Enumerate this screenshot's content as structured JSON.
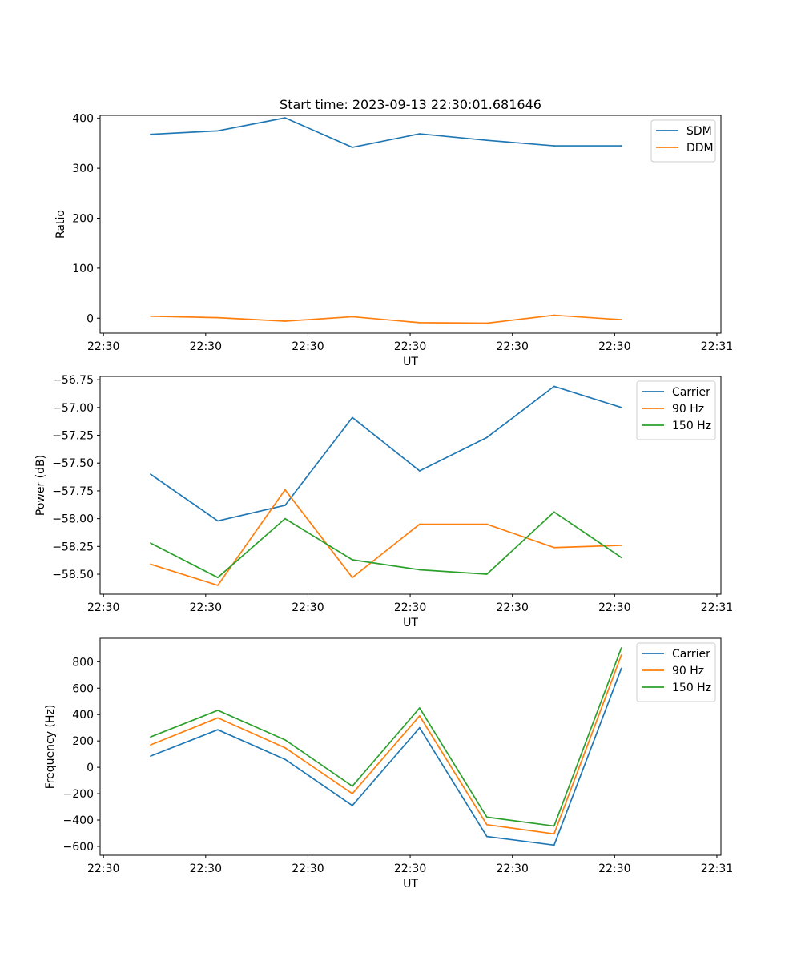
{
  "figure": {
    "title": "Start time: 2023-09-13 22:30:01.681646"
  },
  "chart_data": [
    {
      "type": "line",
      "title": "Start time: 2023-09-13 22:30:01.681646",
      "xlabel": "UT",
      "ylabel": "Ratio",
      "x": [
        0,
        1,
        2,
        3,
        4,
        5,
        6,
        7
      ],
      "xlim": [
        -0.75,
        8.48
      ],
      "xticks": [
        -0.7,
        0.82,
        2.34,
        3.86,
        5.38,
        6.9,
        8.42
      ],
      "xtick_labels": [
        "22:30",
        "22:30",
        "22:30",
        "22:30",
        "22:30",
        "22:30",
        "22:31"
      ],
      "ylim": [
        -30,
        406
      ],
      "yticks": [
        0,
        100,
        200,
        300,
        400
      ],
      "ytick_labels": [
        "0",
        "100",
        "200",
        "300",
        "400"
      ],
      "legend_position": "top-right",
      "series": [
        {
          "name": "SDM",
          "color": "#1f77b4",
          "values": [
            368,
            375,
            401,
            342,
            369,
            356,
            345,
            345
          ]
        },
        {
          "name": "DDM",
          "color": "#ff7f0e",
          "values": [
            4,
            1,
            -6,
            3,
            -9,
            -10,
            6,
            -3
          ]
        }
      ]
    },
    {
      "type": "line",
      "title": "",
      "xlabel": "UT",
      "ylabel": "Power (dB)",
      "x": [
        0,
        1,
        2,
        3,
        4,
        5,
        6,
        7
      ],
      "xlim": [
        -0.75,
        8.48
      ],
      "xticks": [
        -0.7,
        0.82,
        2.34,
        3.86,
        5.38,
        6.9,
        8.42
      ],
      "xtick_labels": [
        "22:30",
        "22:30",
        "22:30",
        "22:30",
        "22:30",
        "22:30",
        "22:31"
      ],
      "ylim": [
        -58.68,
        -56.72
      ],
      "yticks": [
        -58.5,
        -58.25,
        -58.0,
        -57.75,
        -57.5,
        -57.25,
        -57.0,
        -56.75
      ],
      "ytick_labels": [
        "−58.50",
        "−58.25",
        "−58.00",
        "−57.75",
        "−57.50",
        "−57.25",
        "−57.00",
        "−56.75"
      ],
      "legend_position": "top-right",
      "series": [
        {
          "name": "Carrier",
          "color": "#1f77b4",
          "values": [
            -57.6,
            -58.02,
            -57.88,
            -57.09,
            -57.57,
            -57.27,
            -56.81,
            -57.0
          ]
        },
        {
          "name": "90 Hz",
          "color": "#ff7f0e",
          "values": [
            -58.41,
            -58.6,
            -57.74,
            -58.53,
            -58.05,
            -58.05,
            -58.26,
            -58.24
          ]
        },
        {
          "name": "150 Hz",
          "color": "#2ca02c",
          "values": [
            -58.22,
            -58.53,
            -58.0,
            -58.37,
            -58.46,
            -58.5,
            -57.94,
            -58.35
          ]
        }
      ]
    },
    {
      "type": "line",
      "title": "",
      "xlabel": "UT",
      "ylabel": "Frequency (Hz)",
      "x": [
        0,
        1,
        2,
        3,
        4,
        5,
        6,
        7
      ],
      "xlim": [
        -0.75,
        8.48
      ],
      "xticks": [
        -0.7,
        0.82,
        2.34,
        3.86,
        5.38,
        6.9,
        8.42
      ],
      "xtick_labels": [
        "22:30",
        "22:30",
        "22:30",
        "22:30",
        "22:30",
        "22:30",
        "22:31"
      ],
      "ylim": [
        -667,
        978
      ],
      "yticks": [
        -600,
        -400,
        -200,
        0,
        200,
        400,
        600,
        800
      ],
      "ytick_labels": [
        "−600",
        "−400",
        "−200",
        "0",
        "200",
        "400",
        "600",
        "800"
      ],
      "legend_position": "top-right",
      "series": [
        {
          "name": "Carrier",
          "color": "#1f77b4",
          "values": [
            85,
            285,
            60,
            -290,
            300,
            -525,
            -590,
            750
          ]
        },
        {
          "name": "90 Hz",
          "color": "#ff7f0e",
          "values": [
            170,
            375,
            148,
            -200,
            390,
            -435,
            -505,
            850
          ]
        },
        {
          "name": "150 Hz",
          "color": "#2ca02c",
          "values": [
            230,
            432,
            208,
            -143,
            450,
            -378,
            -445,
            905
          ]
        }
      ]
    }
  ]
}
